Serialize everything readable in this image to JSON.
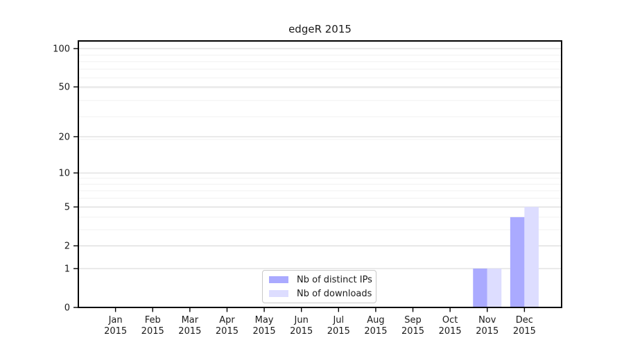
{
  "figure": {
    "background": "#ffffff",
    "text_color": "#1a1a1a"
  },
  "chart_data": {
    "type": "bar",
    "title": "edgeR 2015",
    "x": {
      "categories": [
        "Jan",
        "Feb",
        "Mar",
        "Apr",
        "May",
        "Jun",
        "Jul",
        "Aug",
        "Sep",
        "Oct",
        "Nov",
        "Dec"
      ],
      "year_sublabel": "2015"
    },
    "series": [
      {
        "name": "Nb of distinct IPs",
        "color": "#aaaaff",
        "values": [
          0,
          0,
          0,
          0,
          0,
          0,
          0,
          0,
          0,
          0,
          1,
          4
        ]
      },
      {
        "name": "Nb of downloads",
        "color": "#ddddff",
        "values": [
          0,
          0,
          0,
          0,
          0,
          0,
          0,
          0,
          0,
          0,
          1,
          5
        ]
      }
    ],
    "y_axis": {
      "scale": "log1p",
      "tick_values": [
        0,
        1,
        2,
        5,
        10,
        20,
        50,
        100
      ],
      "range": [
        0,
        100
      ]
    },
    "minor_grid_values": [
      1,
      2,
      3,
      4,
      5,
      6,
      7,
      8,
      9,
      19,
      29,
      39,
      49,
      59,
      69,
      79,
      89
    ],
    "grid": true,
    "legend": {
      "position": "lower center inside plot",
      "entries": [
        "Nb of distinct IPs",
        "Nb of downloads"
      ]
    },
    "colors": {
      "major_grid": "#d6d6d6",
      "minor_grid": "#f0f0f0",
      "spine": "#000000",
      "tick": "#000000"
    }
  }
}
